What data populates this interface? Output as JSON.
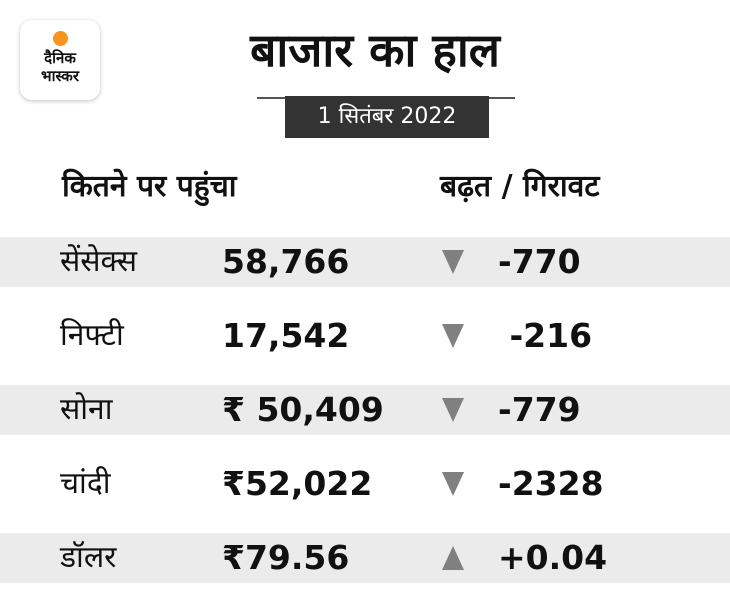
{
  "logo": {
    "line1": "दैनिक",
    "line2": "भास्कर"
  },
  "title": "बाजार का हाल",
  "date": "1 सितंबर 2022",
  "headers": {
    "left": "कितने पर पहुंचा",
    "right": "बढ़त / गिरावट"
  },
  "rows": [
    {
      "name": "सेंसेक्स",
      "value": "58,766",
      "direction": "down",
      "change": "-770"
    },
    {
      "name": "निफ्टी",
      "value": "17,542",
      "direction": "down",
      "change": " -216"
    },
    {
      "name": "सोना",
      "value": "₹ 50,409",
      "direction": "down",
      "change": "-779"
    },
    {
      "name": "चांदी",
      "value": "₹52,022",
      "direction": "down",
      "change": "-2328"
    },
    {
      "name": "डॉलर",
      "value": "₹79.56",
      "direction": "up",
      "change": "+0.04"
    }
  ],
  "colors": {
    "row_shade": "#ebebeb",
    "arrow": "#808080",
    "date_box": "#333333",
    "logo_sun": "#f7941d"
  }
}
